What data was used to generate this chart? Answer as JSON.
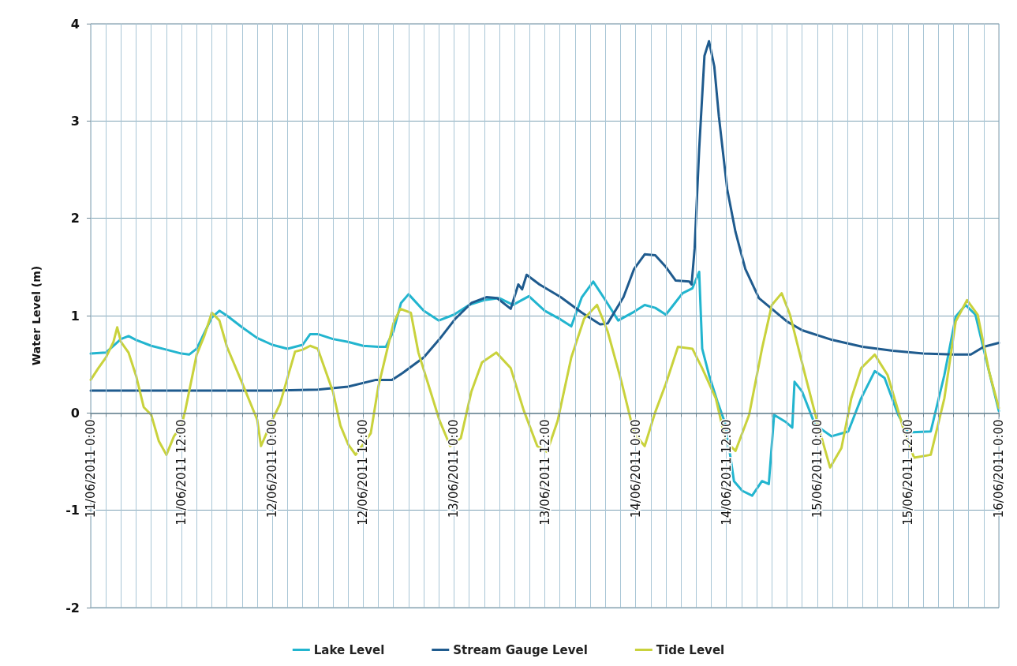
{
  "chart_data": {
    "type": "line",
    "ylabel": "Water Level (m)",
    "ylim": [
      -2,
      4
    ],
    "yticks": [
      -2,
      -1,
      0,
      1,
      2,
      3,
      4
    ],
    "xlim": [
      "2011-06-11T00:00",
      "2011-06-16T00:00"
    ],
    "xticks": [
      {
        "value": "2011-06-11T00:00",
        "label": "11/06/2011 0:00"
      },
      {
        "value": "2011-06-11T02:00",
        "label": null
      },
      {
        "value": "2011-06-11T04:00",
        "label": null
      },
      {
        "value": "2011-06-11T06:00",
        "label": null
      },
      {
        "value": "2011-06-11T08:00",
        "label": null
      },
      {
        "value": "2011-06-11T10:00",
        "label": null
      },
      {
        "value": "2011-06-11T12:00",
        "label": "11/06/2011 12:00"
      },
      {
        "value": "2011-06-11T14:00",
        "label": null
      },
      {
        "value": "2011-06-11T16:00",
        "label": null
      },
      {
        "value": "2011-06-11T18:00",
        "label": null
      },
      {
        "value": "2011-06-11T20:00",
        "label": null
      },
      {
        "value": "2011-06-11T22:00",
        "label": null
      },
      {
        "value": "2011-06-12T00:00",
        "label": "12/06/2011 0:00"
      },
      {
        "value": "2011-06-12T02:00",
        "label": null
      },
      {
        "value": "2011-06-12T04:00",
        "label": null
      },
      {
        "value": "2011-06-12T06:00",
        "label": null
      },
      {
        "value": "2011-06-12T08:00",
        "label": null
      },
      {
        "value": "2011-06-12T10:00",
        "label": null
      },
      {
        "value": "2011-06-12T12:00",
        "label": "12/06/2011 12:00"
      },
      {
        "value": "2011-06-12T14:00",
        "label": null
      },
      {
        "value": "2011-06-12T16:00",
        "label": null
      },
      {
        "value": "2011-06-12T18:00",
        "label": null
      },
      {
        "value": "2011-06-12T20:00",
        "label": null
      },
      {
        "value": "2011-06-12T22:00",
        "label": null
      },
      {
        "value": "2011-06-13T00:00",
        "label": "13/06/2011 0:00"
      },
      {
        "value": "2011-06-13T02:00",
        "label": null
      },
      {
        "value": "2011-06-13T04:00",
        "label": null
      },
      {
        "value": "2011-06-13T06:00",
        "label": null
      },
      {
        "value": "2011-06-13T08:00",
        "label": null
      },
      {
        "value": "2011-06-13T10:00",
        "label": null
      },
      {
        "value": "2011-06-13T12:00",
        "label": "13/06/2011 12:00"
      },
      {
        "value": "2011-06-13T14:00",
        "label": null
      },
      {
        "value": "2011-06-13T16:00",
        "label": null
      },
      {
        "value": "2011-06-13T18:00",
        "label": null
      },
      {
        "value": "2011-06-13T20:00",
        "label": null
      },
      {
        "value": "2011-06-13T22:00",
        "label": null
      },
      {
        "value": "2011-06-14T00:00",
        "label": "14/06/2011 0:00"
      },
      {
        "value": "2011-06-14T02:00",
        "label": null
      },
      {
        "value": "2011-06-14T04:00",
        "label": null
      },
      {
        "value": "2011-06-14T06:00",
        "label": null
      },
      {
        "value": "2011-06-14T08:00",
        "label": null
      },
      {
        "value": "2011-06-14T10:00",
        "label": null
      },
      {
        "value": "2011-06-14T12:00",
        "label": "14/06/2011 12:00"
      },
      {
        "value": "2011-06-14T14:00",
        "label": null
      },
      {
        "value": "2011-06-14T16:00",
        "label": null
      },
      {
        "value": "2011-06-14T18:00",
        "label": null
      },
      {
        "value": "2011-06-14T20:00",
        "label": null
      },
      {
        "value": "2011-06-14T22:00",
        "label": null
      },
      {
        "value": "2011-06-15T00:00",
        "label": "15/06/2011 0:00"
      },
      {
        "value": "2011-06-15T02:00",
        "label": null
      },
      {
        "value": "2011-06-15T04:00",
        "label": null
      },
      {
        "value": "2011-06-15T06:00",
        "label": null
      },
      {
        "value": "2011-06-15T08:00",
        "label": null
      },
      {
        "value": "2011-06-15T10:00",
        "label": null
      },
      {
        "value": "2011-06-15T12:00",
        "label": "15/06/2011 12:00"
      },
      {
        "value": "2011-06-15T14:00",
        "label": null
      },
      {
        "value": "2011-06-15T16:00",
        "label": null
      },
      {
        "value": "2011-06-15T18:00",
        "label": null
      },
      {
        "value": "2011-06-15T20:00",
        "label": null
      },
      {
        "value": "2011-06-15T22:00",
        "label": null
      },
      {
        "value": "2011-06-16T00:00",
        "label": "16/06/2011 0:00"
      }
    ],
    "grid": true,
    "legend": "bottom",
    "marker": "none",
    "line_style": "solid",
    "series": [
      {
        "name": "Lake Level",
        "color": "#22b5cf",
        "x": [
          "2011-06-11T00:00",
          "2011-06-11T02:00",
          "2011-06-11T04:00",
          "2011-06-11T05:00",
          "2011-06-11T06:00",
          "2011-06-11T08:00",
          "2011-06-11T10:00",
          "2011-06-11T12:00",
          "2011-06-11T13:00",
          "2011-06-11T14:00",
          "2011-06-11T16:00",
          "2011-06-11T17:00",
          "2011-06-11T18:00",
          "2011-06-11T20:00",
          "2011-06-11T22:00",
          "2011-06-12T00:00",
          "2011-06-12T02:00",
          "2011-06-12T04:00",
          "2011-06-12T05:00",
          "2011-06-12T06:00",
          "2011-06-12T08:00",
          "2011-06-12T10:00",
          "2011-06-12T12:00",
          "2011-06-12T14:00",
          "2011-06-12T15:00",
          "2011-06-12T16:00",
          "2011-06-12T17:00",
          "2011-06-12T18:00",
          "2011-06-12T20:00",
          "2011-06-12T22:00",
          "2011-06-13T00:00",
          "2011-06-13T02:00",
          "2011-06-13T04:00",
          "2011-06-13T06:00",
          "2011-06-13T07:48",
          "2011-06-13T09:54",
          "2011-06-13T12:00",
          "2011-06-13T14:06",
          "2011-06-13T15:30",
          "2011-06-13T16:54",
          "2011-06-13T18:24",
          "2011-06-13T20:00",
          "2011-06-13T21:42",
          "2011-06-13T23:48",
          "2011-06-14T01:12",
          "2011-06-14T02:36",
          "2011-06-14T04:00",
          "2011-06-14T05:18",
          "2011-06-14T06:12",
          "2011-06-14T07:30",
          "2011-06-14T08:24",
          "2011-06-14T08:48",
          "2011-06-14T09:42",
          "2011-06-14T10:48",
          "2011-06-14T11:54",
          "2011-06-14T13:00",
          "2011-06-14T14:06",
          "2011-06-14T15:24",
          "2011-06-14T16:42",
          "2011-06-14T17:36",
          "2011-06-14T18:18",
          "2011-06-14T19:48",
          "2011-06-14T20:42",
          "2011-06-14T21:00",
          "2011-06-14T22:00",
          "2011-06-14T23:42",
          "2011-06-15T01:54",
          "2011-06-15T04:06",
          "2011-06-15T05:48",
          "2011-06-15T07:36",
          "2011-06-15T08:54",
          "2011-06-15T10:42",
          "2011-06-15T12:00",
          "2011-06-15T15:00",
          "2011-06-15T16:48",
          "2011-06-15T18:18",
          "2011-06-15T19:36",
          "2011-06-15T20:54",
          "2011-06-15T22:30",
          "2011-06-16T00:00"
        ],
        "values": [
          0.61,
          0.62,
          0.76,
          0.79,
          0.75,
          0.69,
          0.65,
          0.61,
          0.6,
          0.66,
          0.98,
          1.05,
          1.0,
          0.88,
          0.77,
          0.7,
          0.66,
          0.7,
          0.81,
          0.81,
          0.76,
          0.73,
          0.69,
          0.68,
          0.68,
          0.84,
          1.13,
          1.22,
          1.05,
          0.95,
          1.01,
          1.11,
          1.16,
          1.18,
          1.11,
          1.2,
          1.05,
          0.96,
          0.89,
          1.19,
          1.35,
          1.16,
          0.95,
          1.04,
          1.11,
          1.08,
          1.01,
          1.14,
          1.23,
          1.28,
          1.45,
          0.66,
          0.39,
          0.12,
          -0.12,
          -0.7,
          -0.8,
          -0.85,
          -0.7,
          -0.73,
          -0.02,
          -0.09,
          -0.15,
          0.32,
          0.22,
          -0.12,
          -0.24,
          -0.19,
          0.15,
          0.43,
          0.36,
          -0.02,
          -0.2,
          -0.19,
          0.39,
          0.99,
          1.11,
          1.01,
          0.49,
          0.02
        ]
      },
      {
        "name": "Stream Gauge Level",
        "color": "#1f5b8e",
        "x": [
          "2011-06-11T00:00",
          "2011-06-11T10:00",
          "2011-06-11T20:00",
          "2011-06-12T00:00",
          "2011-06-12T06:00",
          "2011-06-12T10:00",
          "2011-06-12T13:42",
          "2011-06-12T15:48",
          "2011-06-12T17:12",
          "2011-06-12T20:00",
          "2011-06-12T22:06",
          "2011-06-13T00:12",
          "2011-06-13T02:18",
          "2011-06-13T04:18",
          "2011-06-13T05:42",
          "2011-06-13T07:30",
          "2011-06-13T08:30",
          "2011-06-13T09:00",
          "2011-06-13T09:36",
          "2011-06-13T11:18",
          "2011-06-13T14:06",
          "2011-06-13T16:54",
          "2011-06-13T19:18",
          "2011-06-13T20:18",
          "2011-06-13T22:24",
          "2011-06-13T23:48",
          "2011-06-14T01:12",
          "2011-06-14T02:36",
          "2011-06-14T04:00",
          "2011-06-14T05:18",
          "2011-06-14T07:06",
          "2011-06-14T07:24",
          "2011-06-14T07:48",
          "2011-06-14T08:24",
          "2011-06-14T09:06",
          "2011-06-14T09:42",
          "2011-06-14T10:24",
          "2011-06-14T11:00",
          "2011-06-14T12:06",
          "2011-06-14T13:12",
          "2011-06-14T14:30",
          "2011-06-14T16:18",
          "2011-06-14T18:00",
          "2011-06-14T20:00",
          "2011-06-14T22:00",
          "2011-06-15T02:00",
          "2011-06-15T06:00",
          "2011-06-15T10:00",
          "2011-06-15T14:00",
          "2011-06-15T18:00",
          "2011-06-15T20:18",
          "2011-06-15T22:00",
          "2011-06-16T00:00"
        ],
        "values": [
          0.23,
          0.23,
          0.23,
          0.23,
          0.24,
          0.27,
          0.34,
          0.34,
          0.41,
          0.57,
          0.76,
          0.97,
          1.13,
          1.19,
          1.18,
          1.07,
          1.32,
          1.27,
          1.42,
          1.32,
          1.19,
          1.03,
          0.91,
          0.92,
          1.19,
          1.48,
          1.63,
          1.62,
          1.5,
          1.36,
          1.35,
          1.32,
          1.69,
          2.71,
          3.67,
          3.82,
          3.56,
          3.05,
          2.3,
          1.86,
          1.48,
          1.18,
          1.07,
          0.94,
          0.85,
          0.75,
          0.68,
          0.64,
          0.61,
          0.6,
          0.6,
          0.68,
          0.72
        ]
      },
      {
        "name": "Tide Level",
        "color": "#c9d23c",
        "x": [
          "2011-06-11T00:00",
          "2011-06-11T01:00",
          "2011-06-11T02:00",
          "2011-06-11T03:00",
          "2011-06-11T03:30",
          "2011-06-11T04:00",
          "2011-06-11T05:00",
          "2011-06-11T06:00",
          "2011-06-11T07:00",
          "2011-06-11T08:00",
          "2011-06-11T09:00",
          "2011-06-11T10:00",
          "2011-06-11T11:00",
          "2011-06-11T12:00",
          "2011-06-11T12:30",
          "2011-06-11T14:00",
          "2011-06-11T15:00",
          "2011-06-11T16:00",
          "2011-06-11T17:00",
          "2011-06-11T18:00",
          "2011-06-11T20:00",
          "2011-06-11T22:00",
          "2011-06-11T22:30",
          "2011-06-12T00:00",
          "2011-06-12T01:00",
          "2011-06-12T02:00",
          "2011-06-12T03:00",
          "2011-06-12T04:00",
          "2011-06-12T05:00",
          "2011-06-12T06:00",
          "2011-06-12T08:00",
          "2011-06-12T09:00",
          "2011-06-12T10:00",
          "2011-06-12T11:00",
          "2011-06-12T12:00",
          "2011-06-12T13:00",
          "2011-06-12T14:00",
          "2011-06-12T16:00",
          "2011-06-12T16:54",
          "2011-06-12T18:18",
          "2011-06-12T19:18",
          "2011-06-12T20:42",
          "2011-06-12T22:06",
          "2011-06-12T23:30",
          "2011-06-13T00:54",
          "2011-06-13T02:18",
          "2011-06-13T03:42",
          "2011-06-13T05:36",
          "2011-06-13T07:30",
          "2011-06-13T09:12",
          "2011-06-13T11:00",
          "2011-06-13T12:18",
          "2011-06-13T13:42",
          "2011-06-13T15:30",
          "2011-06-13T17:12",
          "2011-06-13T18:54",
          "2011-06-13T20:18",
          "2011-06-13T22:06",
          "2011-06-13T23:48",
          "2011-06-14T01:12",
          "2011-06-14T02:36",
          "2011-06-14T04:00",
          "2011-06-14T05:36",
          "2011-06-14T07:30",
          "2011-06-14T08:48",
          "2011-06-14T10:36",
          "2011-06-14T11:54",
          "2011-06-14T13:12",
          "2011-06-14T15:00",
          "2011-06-14T16:42",
          "2011-06-14T18:00",
          "2011-06-14T19:18",
          "2011-06-14T20:24",
          "2011-06-14T22:24",
          "2011-06-15T00:12",
          "2011-06-15T01:42",
          "2011-06-15T03:12",
          "2011-06-15T04:30",
          "2011-06-15T05:48",
          "2011-06-15T07:36",
          "2011-06-15T09:18",
          "2011-06-15T11:30",
          "2011-06-15T12:48",
          "2011-06-15T15:00",
          "2011-06-15T16:48",
          "2011-06-15T18:18",
          "2011-06-15T19:48",
          "2011-06-15T21:12",
          "2011-06-15T22:42",
          "2011-06-16T00:00"
        ],
        "values": [
          0.34,
          0.46,
          0.57,
          0.73,
          0.88,
          0.73,
          0.62,
          0.38,
          0.06,
          -0.02,
          -0.29,
          -0.43,
          -0.24,
          -0.13,
          0.03,
          0.6,
          0.79,
          1.03,
          0.95,
          0.68,
          0.31,
          -0.07,
          -0.34,
          -0.07,
          0.09,
          0.36,
          0.63,
          0.65,
          0.69,
          0.66,
          0.22,
          -0.13,
          -0.32,
          -0.43,
          -0.32,
          -0.21,
          0.27,
          0.92,
          1.07,
          1.03,
          0.62,
          0.27,
          -0.08,
          -0.34,
          -0.26,
          0.22,
          0.52,
          0.62,
          0.46,
          0.03,
          -0.34,
          -0.4,
          -0.08,
          0.57,
          0.97,
          1.11,
          0.84,
          0.33,
          -0.21,
          -0.34,
          0.01,
          0.3,
          0.68,
          0.66,
          0.46,
          0.15,
          -0.29,
          -0.39,
          -0.02,
          0.66,
          1.11,
          1.23,
          1.01,
          0.39,
          -0.15,
          -0.56,
          -0.36,
          0.15,
          0.46,
          0.6,
          0.39,
          -0.19,
          -0.46,
          -0.43,
          0.15,
          0.94,
          1.16,
          1.01,
          0.43,
          0.05
        ]
      }
    ]
  }
}
